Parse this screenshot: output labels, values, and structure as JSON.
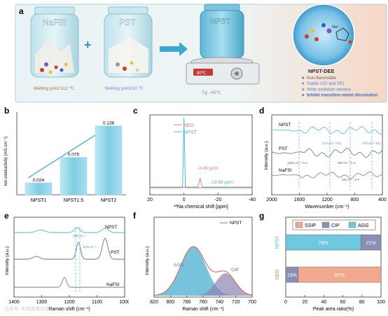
{
  "panel_a": {
    "letter": "a",
    "jar1_label": "NaFSI",
    "jar1_melting": "Melting point:112 ℃",
    "plus": "+",
    "jar2_label": "PST",
    "jar2_melting": "Melting point:82 ℃",
    "jar3_label": "NPST",
    "jar3_tg": "Tg: -42℃",
    "display_text": "80℃",
    "bubble_title": "NPST-DEE",
    "bubble_na": "Na⁺",
    "features": [
      {
        "text": "Non-flammable",
        "color": "#7a5a3a"
      },
      {
        "text": "Stable CEI and SEI",
        "color": "#5b86c9"
      },
      {
        "text": "Wide oxidation window",
        "color": "#5b86c9"
      },
      {
        "text": "Inhibit transition-metal dissolution",
        "color": "#3b6fc0"
      }
    ]
  },
  "chart_data": [
    {
      "panel": "b",
      "type": "bar",
      "ylabel": "Ion conductivity (mS cm⁻¹)",
      "categories": [
        "NPST1",
        "NPST1.5",
        "NPST2"
      ],
      "values": [
        0.024,
        0.075,
        0.138
      ],
      "value_labels": [
        "0.024",
        "0.075",
        "0.138"
      ],
      "ylim": [
        0,
        0.16
      ],
      "bar_color": "#7ecfe3"
    },
    {
      "panel": "c",
      "type": "line",
      "xlabel": "²³Na chemical shift [ppm]",
      "xlim": [
        20,
        -40
      ],
      "xticks": [
        "20",
        "0",
        "-20",
        "-40"
      ],
      "series": [
        {
          "name": "NED",
          "color": "#e8806a",
          "peak_ppm": -9.46
        },
        {
          "name": "NPST",
          "color": "#4ab8d8",
          "peak_ppm": 0
        }
      ],
      "annotations": [
        "-9.46 ppm",
        "-13.59 ppm"
      ]
    },
    {
      "panel": "d",
      "type": "line",
      "xlabel": "Wavenumber (cm⁻¹)",
      "ylabel": "Intensity (a.u.)",
      "xlim": [
        2000,
        400
      ],
      "xticks": [
        "2000",
        "1600",
        "1200",
        "800",
        "400"
      ],
      "series": [
        {
          "name": "NPST",
          "color": "#4ab8d8"
        },
        {
          "name": "PST",
          "color": "#6b6b8a"
        },
        {
          "name": "NaFSI",
          "color": "#8a7a6a"
        }
      ],
      "annotations": [
        "1174 cm⁻¹ SO₂",
        "573 cm⁻¹ SO₂",
        "1609 cm⁻¹ C=C",
        "990 cm⁻¹ S-C",
        "940 cm⁻¹ S-F"
      ]
    },
    {
      "panel": "e",
      "type": "line",
      "xlabel": "Raman shift (cm⁻¹)",
      "ylabel": "Intensity (a.u.)",
      "xlim": [
        1400,
        1000
      ],
      "xticks": [
        "1400",
        "1300",
        "1200",
        "1100",
        "1000"
      ],
      "series": [
        {
          "name": "NPST",
          "color": "#4ab8d8"
        },
        {
          "name": "PST",
          "color": "#6b6b8a"
        },
        {
          "name": "NaFSI",
          "color": "#8a7a6a"
        }
      ],
      "annotations": [
        "1181 cm⁻¹",
        "1175 cm⁻¹"
      ]
    },
    {
      "panel": "f",
      "type": "area",
      "xlabel": "Raman shift (cm⁻¹)",
      "ylabel": "Intensity (a.u.)",
      "xlim": [
        820,
        700
      ],
      "xticks": [
        "820",
        "800",
        "780",
        "760",
        "740",
        "720",
        "700"
      ],
      "series": [
        {
          "name": "NPST",
          "color": "#e05555"
        },
        {
          "name": "AGG",
          "color": "#5fb8d6"
        },
        {
          "name": "CIP",
          "color": "#8c84b0"
        }
      ]
    },
    {
      "panel": "g",
      "type": "bar",
      "orientation": "horizontal-stacked",
      "xlabel": "Peak area ratio(%)",
      "xlim": [
        0,
        100
      ],
      "xticks": [
        "0",
        "20",
        "40",
        "60",
        "80",
        "100"
      ],
      "categories": [
        "NPST",
        "NED"
      ],
      "legend": [
        "SSIP",
        "CIP",
        "AGG"
      ],
      "series": [
        {
          "name": "SSIP",
          "color": "#f2a88e",
          "values": [
            0,
            87
          ]
        },
        {
          "name": "CIP",
          "color": "#8c8fb5",
          "values": [
            21,
            13
          ]
        },
        {
          "name": "AGG",
          "color": "#6fc7e0",
          "values": [
            79,
            0
          ]
        }
      ],
      "value_labels": {
        "NPST": [
          "79%",
          "21%"
        ],
        "NED": [
          "13%",
          "87%"
        ]
      }
    }
  ],
  "letters": {
    "b": "b",
    "c": "c",
    "d": "d",
    "e": "e",
    "f": "f",
    "g": "g"
  },
  "watermark": "公众号·大帅说电化学"
}
